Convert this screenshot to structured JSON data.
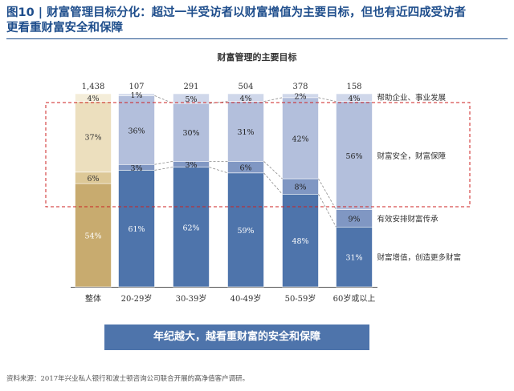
{
  "figure": {
    "title_line1": "图10 | 财富管理目标分化：超过一半受访者以财富增值为主要目标，但也有近四成受访者",
    "title_line2": "更看重财富安全和保障",
    "banner": "年纪越大，越看重财富的安全和保障",
    "source": "资料来源：2017年兴业私人银行和波士顿咨询公司联合开展的高净值客户调研。"
  },
  "chart_data": {
    "type": "bar",
    "stacked": true,
    "percent": true,
    "title": "财富管理的主要目标",
    "categories": [
      "整体",
      "20-29岁",
      "30-39岁",
      "40-49岁",
      "50-59岁",
      "60岁或以上"
    ],
    "sample_sizes": [
      "1,438",
      "107",
      "291",
      "504",
      "378",
      "158"
    ],
    "series": [
      {
        "name": "财富增值，创造更多财富",
        "values": [
          54,
          61,
          62,
          59,
          48,
          31
        ],
        "labels": [
          "54%",
          "61%",
          "62%",
          "59%",
          "48%",
          "31%"
        ]
      },
      {
        "name": "有效安排财富传承",
        "values": [
          6,
          3,
          3,
          6,
          8,
          9
        ],
        "labels": [
          "6%",
          "3%",
          "3%",
          "6%",
          "8%",
          "9%"
        ]
      },
      {
        "name": "财富安全，财富保障",
        "values": [
          37,
          36,
          30,
          31,
          42,
          56
        ],
        "labels": [
          "37%",
          "36%",
          "30%",
          "31%",
          "42%",
          "56%"
        ]
      },
      {
        "name": "帮助企业、事业发展",
        "values": [
          4,
          1,
          5,
          4,
          2,
          4
        ],
        "labels": [
          "4%",
          "1%",
          "5%",
          "4%",
          "2%",
          "4%"
        ]
      }
    ],
    "colors": {
      "overall": [
        "#c8ab6f",
        "#ddc897",
        "#ecdfbe",
        "#f4edd9"
      ],
      "age": [
        "#4e74ab",
        "#8097c3",
        "#b3bfdc",
        "#cfd7ea"
      ],
      "overall_text": [
        "#ffffff",
        "#333333",
        "#333333",
        "#333333"
      ],
      "age_text": [
        "#ffffff",
        "#222222",
        "#222222",
        "#222222"
      ],
      "highlight_box": "#cc2222",
      "connector": "#8c8c8c"
    },
    "highlight_series": [
      "有效安排财富传承",
      "财富安全，财富保障"
    ],
    "legend_position": "right"
  }
}
